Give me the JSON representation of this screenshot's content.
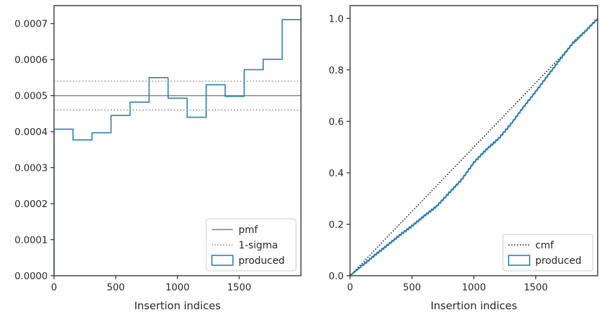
{
  "chart_data": [
    {
      "type": "step-histogram",
      "xlabel": "Insertion indices",
      "ylabel": "",
      "xlim": [
        0,
        2000
      ],
      "ylim": [
        0,
        0.00075
      ],
      "xticks": [
        0,
        500,
        1000,
        1500
      ],
      "xtick_labels": [
        "0",
        "500",
        "1000",
        "1500"
      ],
      "yticks": [
        0,
        0.0001,
        0.0002,
        0.0003,
        0.0004,
        0.0005,
        0.0006,
        0.0007
      ],
      "ytick_labels": [
        "0.0000",
        "0.0001",
        "0.0002",
        "0.0003",
        "0.0004",
        "0.0005",
        "0.0006",
        "0.0007"
      ],
      "grid": false,
      "legend_position": "bottom-right",
      "bin_edges": [
        0,
        154,
        308,
        462,
        616,
        770,
        924,
        1078,
        1232,
        1386,
        1540,
        1694,
        1848,
        2000
      ],
      "values": [
        0.000407,
        0.000377,
        0.000397,
        0.000445,
        0.000482,
        0.00055,
        0.000493,
        0.00044,
        0.00053,
        0.000498,
        0.000572,
        0.000601,
        0.000711
      ],
      "pmf": 0.0005,
      "sigma_band": [
        0.00046,
        0.00054
      ],
      "colors": {
        "produced": "#2f7eb0",
        "pmf": "#7f7f7f",
        "sigma": "#7f7f7f"
      },
      "legend": [
        {
          "key": "pmf",
          "label": "pmf",
          "style": "solid"
        },
        {
          "key": "sigma",
          "label": "1-sigma",
          "style": "dotted"
        },
        {
          "key": "produced",
          "label": "produced",
          "style": "box"
        }
      ]
    },
    {
      "type": "cumulative",
      "xlabel": "Insertion indices",
      "ylabel": "",
      "xlim": [
        0,
        2000
      ],
      "ylim": [
        0,
        1.05
      ],
      "xticks": [
        0,
        500,
        1000,
        1500
      ],
      "xtick_labels": [
        "0",
        "500",
        "1000",
        "1500"
      ],
      "yticks": [
        0,
        0.2,
        0.4,
        0.6,
        0.8,
        1.0
      ],
      "ytick_labels": [
        "0.0",
        "0.2",
        "0.4",
        "0.6",
        "0.8",
        "1.0"
      ],
      "grid": false,
      "legend_position": "bottom-right",
      "cmf": {
        "x": [
          0,
          2000
        ],
        "y": [
          0,
          1.0
        ]
      },
      "produced": {
        "x": [
          0,
          100,
          200,
          300,
          400,
          500,
          600,
          700,
          800,
          900,
          1000,
          1100,
          1200,
          1300,
          1400,
          1500,
          1600,
          1700,
          1800,
          1900,
          2000
        ],
        "y": [
          0,
          0.04,
          0.08,
          0.118,
          0.157,
          0.193,
          0.233,
          0.27,
          0.322,
          0.373,
          0.44,
          0.49,
          0.533,
          0.59,
          0.655,
          0.716,
          0.78,
          0.843,
          0.905,
          0.95,
          1.0
        ]
      },
      "colors": {
        "produced": "#2f7eb0",
        "cmf": "#000000"
      },
      "legend": [
        {
          "key": "cmf",
          "label": "cmf",
          "style": "dotted"
        },
        {
          "key": "produced",
          "label": "produced",
          "style": "box"
        }
      ]
    }
  ]
}
